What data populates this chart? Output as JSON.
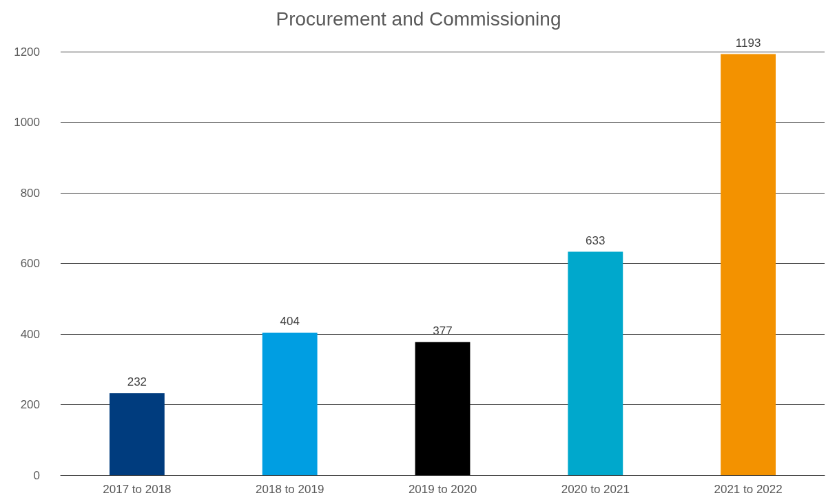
{
  "chart_data": {
    "type": "bar",
    "title": "Procurement and Commissioning",
    "categories": [
      "2017 to 2018",
      "2018 to 2019",
      "2019 to 2020",
      "2020 to 2021",
      "2021 to 2022"
    ],
    "values": [
      232,
      404,
      377,
      633,
      1193
    ],
    "colors": [
      "#003c7e",
      "#009ee2",
      "#000000",
      "#00a8cc",
      "#f39200"
    ],
    "ylim": [
      0,
      1200
    ],
    "yticks": [
      0,
      200,
      400,
      600,
      800,
      1000,
      1200
    ],
    "grid": "y",
    "data_labels": true
  }
}
